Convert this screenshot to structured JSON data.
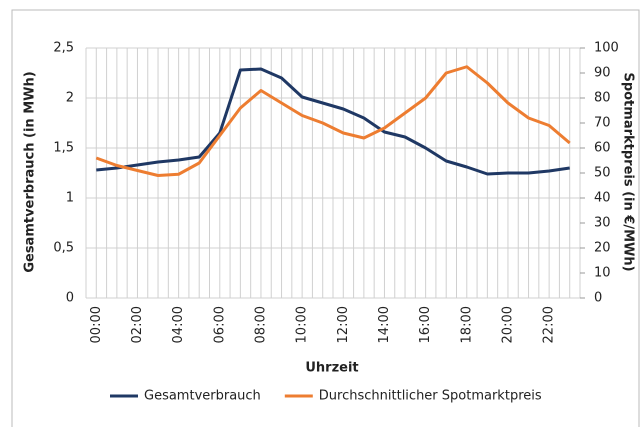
{
  "chart_data": {
    "type": "line",
    "xlabel": "Uhrzeit",
    "ylabel": "Gesamtverbrauch (in MWh)",
    "y2label": "Spotmarktpreis (in €/MWh)",
    "categories": [
      "00:00",
      null,
      "02:00",
      null,
      "04:00",
      null,
      "06:00",
      null,
      "08:00",
      null,
      "10:00",
      null,
      "12:00",
      null,
      "14:00",
      null,
      "16:00",
      null,
      "18:00",
      null,
      "20:00",
      null,
      "22:00",
      null
    ],
    "series": [
      {
        "name": "Gesamtverbrauch",
        "color": "#1f3864",
        "values": [
          1.28,
          1.3,
          1.33,
          1.36,
          1.38,
          1.41,
          1.65,
          2.28,
          2.29,
          2.2,
          2.01,
          1.95,
          1.89,
          1.8,
          1.66,
          1.61,
          1.5,
          1.37,
          1.31,
          1.24,
          1.25,
          1.25,
          1.27,
          1.3
        ]
      },
      {
        "name": "Durchschnittlicher Spotmarktpreis",
        "color": "#ed7d31",
        "axis": "y2",
        "values": [
          56,
          53,
          51,
          49,
          49.5,
          54,
          65,
          76,
          83,
          78,
          73,
          70,
          66,
          64,
          68,
          74,
          80,
          90,
          92.5,
          86,
          78,
          72,
          69,
          62
        ]
      }
    ],
    "ylim": [
      0,
      2.5
    ],
    "yticks": [
      0,
      {
        "value": 0.5,
        "label": "0,5"
      },
      1,
      {
        "value": 1.5,
        "label": "1,5"
      },
      2,
      {
        "value": 2.5,
        "label": "2,5"
      }
    ],
    "y2lim": [
      0,
      100
    ],
    "y2ticks": [
      0,
      10,
      20,
      30,
      40,
      50,
      60,
      70,
      80,
      90,
      100
    ],
    "grid": true
  }
}
